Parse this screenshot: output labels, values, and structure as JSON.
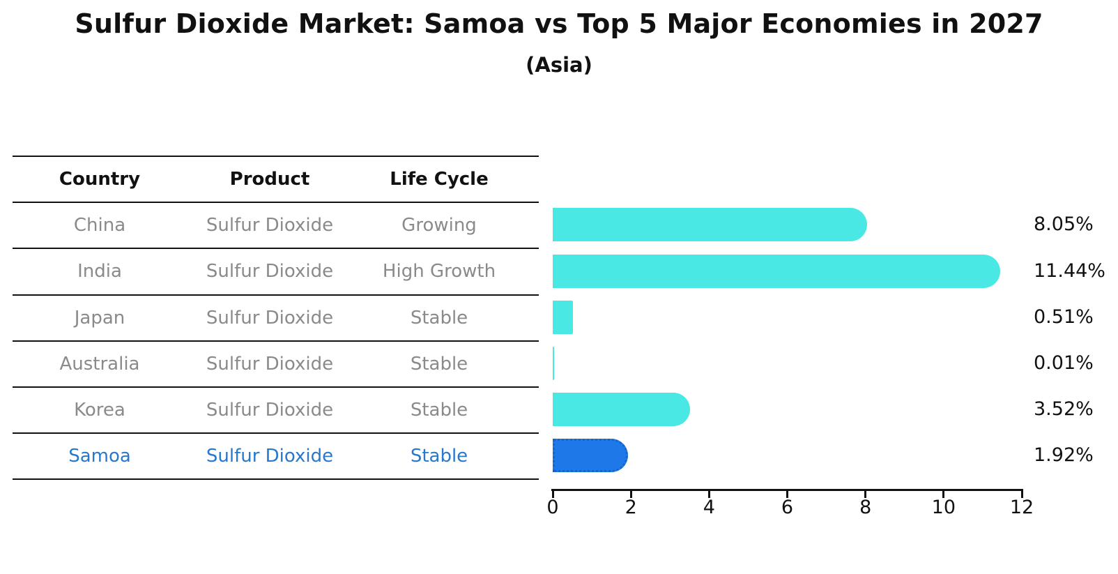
{
  "title": "Sulfur Dioxide Market: Samoa vs Top 5 Major Economies in 2027",
  "subtitle": "(Asia)",
  "table": {
    "headers": [
      "Country",
      "Product",
      "Life Cycle"
    ],
    "rows": [
      {
        "country": "China",
        "product": "Sulfur Dioxide",
        "life_cycle": "Growing",
        "highlight": false
      },
      {
        "country": "India",
        "product": "Sulfur Dioxide",
        "life_cycle": "High Growth",
        "highlight": false
      },
      {
        "country": "Japan",
        "product": "Sulfur Dioxide",
        "life_cycle": "Stable",
        "highlight": false
      },
      {
        "country": "Australia",
        "product": "Sulfur Dioxide",
        "life_cycle": "Stable",
        "highlight": false
      },
      {
        "country": "Korea",
        "product": "Sulfur Dioxide",
        "life_cycle": "Stable",
        "highlight": false
      },
      {
        "country": "Samoa",
        "product": "Sulfur Dioxide",
        "life_cycle": "Stable",
        "highlight": true
      }
    ]
  },
  "chart_data": {
    "type": "bar",
    "orientation": "horizontal",
    "title": "Sulfur Dioxide Market: Samoa vs Top 5 Major Economies in 2027",
    "subtitle": "(Asia)",
    "categories": [
      "China",
      "India",
      "Japan",
      "Australia",
      "Korea",
      "Samoa"
    ],
    "values": [
      8.05,
      11.44,
      0.51,
      0.01,
      3.52,
      1.92
    ],
    "value_labels": [
      "8.05%",
      "11.44%",
      "0.51%",
      "0.01%",
      "3.52%",
      "1.92%"
    ],
    "xlim": [
      0,
      12
    ],
    "xticks": [
      0,
      2,
      4,
      6,
      8,
      10,
      12
    ],
    "grid": false,
    "legend": false,
    "highlight_index": 5
  },
  "colors": {
    "bar": "#4AE8E4",
    "highlight_bar": "#1E78E8",
    "highlight_border": "#1563CC",
    "highlight_text": "#2878CD",
    "table_text": "#8A8A8A",
    "axis_text": "#111111"
  }
}
